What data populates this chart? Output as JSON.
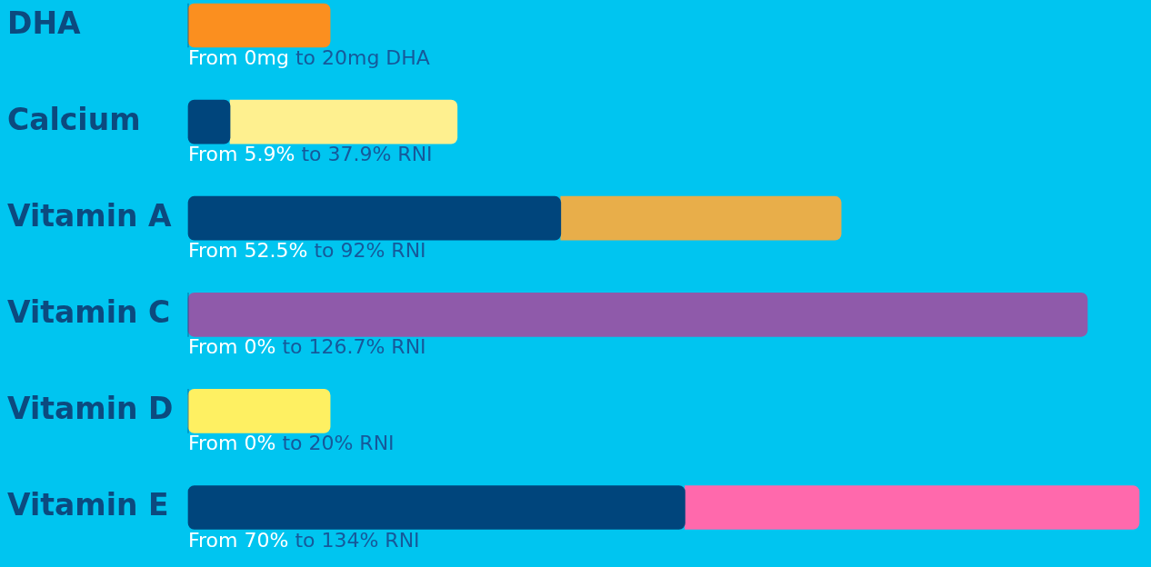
{
  "chart_data": {
    "type": "bar",
    "orientation": "horizontal",
    "stacked": true,
    "tick_labels": "y",
    "categories": [
      "DHA",
      "Calcium",
      "Vitamin A",
      "Vitamin C",
      "Vitamin D",
      "Vitamin E"
    ],
    "series": [
      {
        "color": "#00457c",
        "values": [
          0,
          5.9,
          52.5,
          0,
          0,
          70
        ],
        "value_labels": [
          "From 0mg",
          "From 5.9%",
          "From 52.5%",
          "From 0%",
          "From 0%",
          "From 70%"
        ]
      },
      {
        "colors": [
          "#fb8f1f",
          "#fef08f",
          "#e8ae4a",
          "#8f5aaa",
          "#fef062",
          "#ff69ac"
        ],
        "values": [
          20,
          32,
          39.5,
          126.7,
          20,
          64
        ]
      }
    ],
    "totals": [
      "to 20mg DHA",
      "to 37.9% RNI",
      "to 92% RNI",
      "to 126.7% RNI",
      "to 20% RNI",
      "to 134% RNI"
    ]
  }
}
